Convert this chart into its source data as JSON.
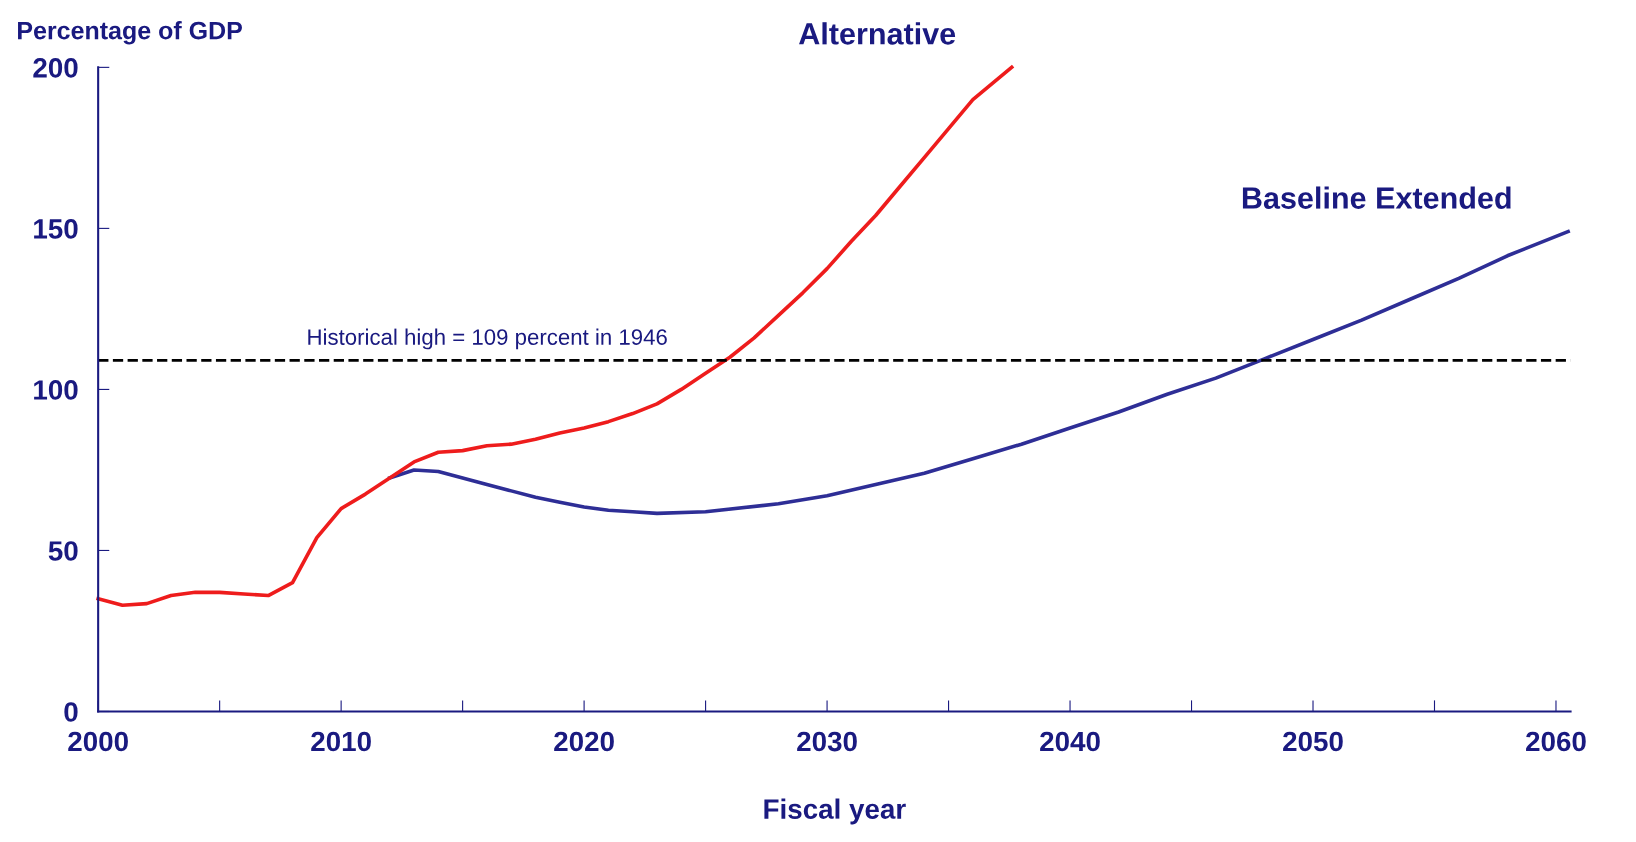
{
  "chart_data": {
    "type": "line",
    "ylabel": "Percentage of GDP",
    "xlabel": "Fiscal year",
    "xlim": [
      2000,
      2060.6
    ],
    "ylim": [
      0,
      200
    ],
    "xticks": [
      2000,
      {
        "value": 2005,
        "label": null
      },
      2010,
      {
        "value": 2015,
        "label": null
      },
      2020,
      {
        "value": 2025,
        "label": null
      },
      2030,
      {
        "value": 2035,
        "label": null
      },
      2040,
      {
        "value": 2045,
        "label": null
      },
      2050,
      {
        "value": 2055,
        "label": null
      },
      2060
    ],
    "yticks": [
      0,
      50,
      100,
      150,
      200
    ],
    "grid": false,
    "legend": false,
    "marker": "none",
    "line_style": "solid",
    "series": [
      {
        "name": "Baseline Extended",
        "color": "#2e2e96",
        "x": [
          2012,
          2013,
          2014,
          2015,
          2016,
          2017,
          2018,
          2019,
          2020,
          2021,
          2022,
          2023,
          2025,
          2028,
          2030,
          2032,
          2034,
          2036,
          2038,
          2040,
          2042,
          2044,
          2046,
          2048,
          2050,
          2052,
          2054,
          2056,
          2058,
          2060.5
        ],
        "values": [
          72.5,
          75,
          74.5,
          72.5,
          70.5,
          68.5,
          66.5,
          65,
          63.5,
          62.5,
          62,
          61.5,
          62,
          64.5,
          67,
          70.5,
          74,
          78.5,
          83,
          88,
          93,
          98.5,
          103.5,
          109.5,
          115.5,
          121.5,
          128,
          134.5,
          141.5,
          149
        ]
      },
      {
        "name": "Alternative",
        "color": "#ee1c1c",
        "x": [
          2000,
          2001,
          2002,
          2003,
          2004,
          2005,
          2006,
          2007,
          2008,
          2009,
          2010,
          2011,
          2012,
          2013,
          2014,
          2015,
          2016,
          2017,
          2018,
          2019,
          2020,
          2021,
          2022,
          2023,
          2024,
          2025,
          2026,
          2027,
          2028,
          2029,
          2030,
          2031,
          2032,
          2033,
          2034,
          2035,
          2036,
          2037.6
        ],
        "values": [
          35,
          33,
          33.5,
          36,
          37,
          37,
          36.5,
          36,
          40,
          54,
          63,
          67.5,
          72.5,
          77.5,
          80.5,
          81,
          82.5,
          83,
          84.5,
          86.5,
          88,
          90,
          92.5,
          95.5,
          100,
          105,
          110,
          116,
          123,
          130,
          137.5,
          146,
          154,
          163,
          172,
          181,
          190,
          200
        ]
      }
    ],
    "ref_lines": [
      {
        "axis": "y",
        "value": 109,
        "label": "Historical high = 109 percent in 1946",
        "color": "#000000",
        "line_style": "dashed"
      }
    ]
  }
}
